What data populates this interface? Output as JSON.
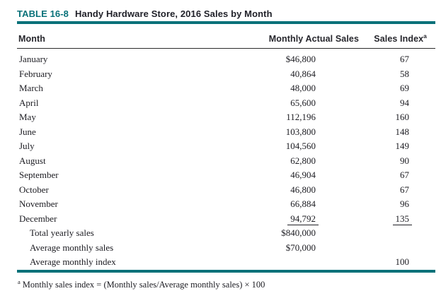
{
  "header": {
    "table_label": "TABLE 16-8",
    "table_caption": "Handy Hardware Store, 2016 Sales by Month"
  },
  "table": {
    "columns": {
      "month": "Month",
      "sales": "Monthly Actual Sales",
      "index": "Sales Index",
      "index_superscript": "a"
    },
    "rows": [
      {
        "month": "January",
        "sales": "$46,800",
        "index": "67"
      },
      {
        "month": "February",
        "sales": "40,864",
        "index": "58"
      },
      {
        "month": "March",
        "sales": "48,000",
        "index": "69"
      },
      {
        "month": "April",
        "sales": "65,600",
        "index": "94"
      },
      {
        "month": "May",
        "sales": "112,196",
        "index": "160"
      },
      {
        "month": "June",
        "sales": "103,800",
        "index": "148"
      },
      {
        "month": "July",
        "sales": "104,560",
        "index": "149"
      },
      {
        "month": "August",
        "sales": "62,800",
        "index": "90"
      },
      {
        "month": "September",
        "sales": "46,904",
        "index": "67"
      },
      {
        "month": "October",
        "sales": "46,800",
        "index": "67"
      },
      {
        "month": "November",
        "sales": "66,884",
        "index": "96"
      },
      {
        "month": "December",
        "sales": "94,792",
        "index": "135",
        "underline": true
      }
    ],
    "summary_rows": [
      {
        "label": "Total yearly sales",
        "sales": "$840,000",
        "index": ""
      },
      {
        "label": "Average monthly sales",
        "sales": "$70,000",
        "index": ""
      },
      {
        "label": "Average monthly index",
        "sales": "",
        "index": "100"
      }
    ],
    "footnote_marker": "a",
    "footnote_text": "Monthly sales index = (Monthly sales/Average monthly sales) × 100"
  },
  "colors": {
    "accent_teal": "#077179",
    "text_dark": "#1c1c22"
  },
  "chart_data": {
    "type": "table",
    "title": "TABLE 16-8 Handy Hardware Store, 2016 Sales by Month",
    "categories": [
      "January",
      "February",
      "March",
      "April",
      "May",
      "June",
      "July",
      "August",
      "September",
      "October",
      "November",
      "December"
    ],
    "series": [
      {
        "name": "Monthly Actual Sales",
        "values": [
          46800,
          40864,
          48000,
          65600,
          112196,
          103800,
          104560,
          62800,
          46904,
          46800,
          66884,
          94792
        ]
      },
      {
        "name": "Sales Index",
        "values": [
          67,
          58,
          69,
          94,
          160,
          148,
          149,
          90,
          67,
          67,
          96,
          135
        ]
      }
    ],
    "totals": {
      "total_yearly_sales": 840000,
      "average_monthly_sales": 70000,
      "average_monthly_index": 100
    }
  }
}
